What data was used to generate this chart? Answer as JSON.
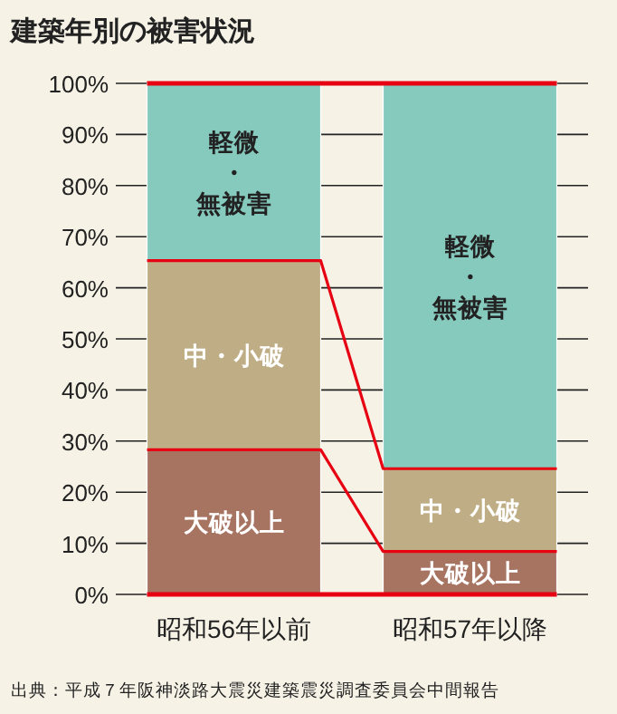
{
  "chart_data": {
    "type": "bar",
    "stacked": true,
    "title": "建築年別の被害状況",
    "categories": [
      "昭和56年以前",
      "昭和57年以降"
    ],
    "series": [
      {
        "name": "大破以上",
        "color": "#a87462",
        "values": [
          28.3,
          8.4
        ]
      },
      {
        "name": "中・小破",
        "color": "#bfae85",
        "values": [
          37.0,
          16.2
        ]
      },
      {
        "name": "軽微・無被害",
        "color": "#86c9bd",
        "values": [
          34.7,
          75.4
        ]
      }
    ],
    "ylim": [
      0,
      100
    ],
    "yticks": [
      {
        "value": 0,
        "label": "0%"
      },
      {
        "value": 10,
        "label": "10%"
      },
      {
        "value": 20,
        "label": "20%"
      },
      {
        "value": 30,
        "label": "30%"
      },
      {
        "value": 40,
        "label": "40%"
      },
      {
        "value": 50,
        "label": "50%"
      },
      {
        "value": 60,
        "label": "60%"
      },
      {
        "value": 70,
        "label": "70%"
      },
      {
        "value": 80,
        "label": "80%"
      },
      {
        "value": 90,
        "label": "90%"
      },
      {
        "value": 100,
        "label": "100%"
      }
    ],
    "grid": "y",
    "annotations": [
      "出典：平成７年阪神淡路大震災建築震災調査委員会中間報告"
    ]
  }
}
